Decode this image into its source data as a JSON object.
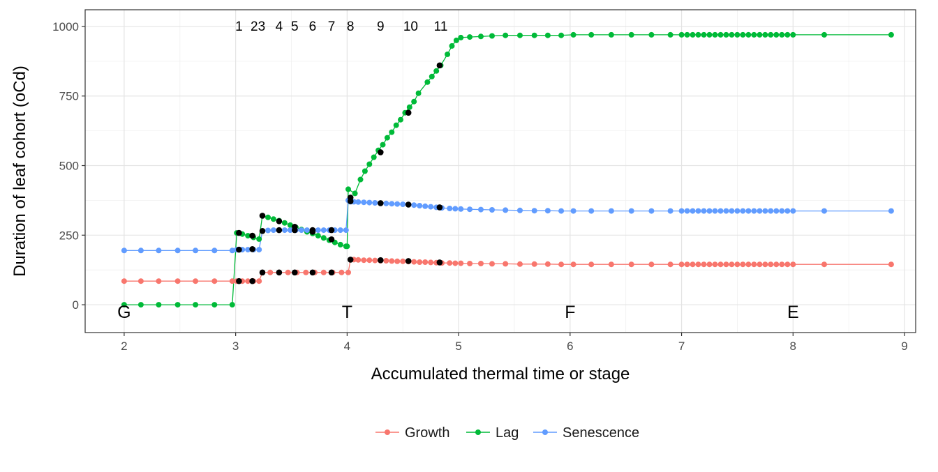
{
  "chart_data": {
    "type": "line",
    "title": "",
    "xlabel": "Accumulated thermal time or stage",
    "ylabel": "Duration of leaf cohort (oCd)",
    "xlim": [
      1.65,
      9.1
    ],
    "ylim": [
      -100,
      1060
    ],
    "x_ticks": [
      2,
      3,
      4,
      5,
      6,
      7,
      8,
      9
    ],
    "x_tick_labels": [
      "2",
      "3",
      "4",
      "5",
      "6",
      "7",
      "8",
      "9"
    ],
    "y_ticks": [
      0,
      250,
      500,
      750,
      1000
    ],
    "y_tick_labels": [
      "0",
      "250",
      "500",
      "750",
      "1000"
    ],
    "grid": true,
    "legend_position": "bottom",
    "series": [
      {
        "name": "Growth",
        "color": "#F8766D",
        "x": [
          2.0,
          2.15,
          2.31,
          2.48,
          2.64,
          2.81,
          2.97,
          3.01,
          3.06,
          3.11,
          3.16,
          3.21,
          3.24,
          3.31,
          3.39,
          3.47,
          3.55,
          3.63,
          3.71,
          3.79,
          3.87,
          3.95,
          4.01,
          4.03,
          4.06,
          4.1,
          4.15,
          4.2,
          4.25,
          4.3,
          4.35,
          4.4,
          4.45,
          4.5,
          4.55,
          4.6,
          4.65,
          4.7,
          4.75,
          4.8,
          4.85,
          4.92,
          4.97,
          5.02,
          5.1,
          5.2,
          5.3,
          5.42,
          5.55,
          5.68,
          5.8,
          5.92,
          6.03,
          6.19,
          6.37,
          6.55,
          6.73,
          6.9,
          7.0,
          7.05,
          7.1,
          7.15,
          7.2,
          7.25,
          7.3,
          7.35,
          7.4,
          7.45,
          7.5,
          7.55,
          7.6,
          7.65,
          7.7,
          7.75,
          7.8,
          7.85,
          7.9,
          7.95,
          8.0,
          8.28,
          8.88
        ],
        "values": [
          85,
          85,
          85,
          85,
          85,
          85,
          85,
          85,
          85,
          85,
          85,
          85,
          116,
          116,
          116,
          116,
          116,
          116,
          116,
          116,
          116,
          116,
          116,
          162,
          162,
          161,
          160,
          160,
          159,
          158,
          158,
          157,
          156,
          156,
          155,
          154,
          153,
          153,
          152,
          151,
          150,
          150,
          149,
          149,
          148,
          148,
          147,
          147,
          146,
          146,
          146,
          145,
          145,
          145,
          145,
          145,
          145,
          145,
          145,
          145,
          145,
          145,
          145,
          145,
          145,
          145,
          145,
          145,
          145,
          145,
          145,
          145,
          145,
          145,
          145,
          145,
          145,
          145,
          145,
          145,
          145
        ]
      },
      {
        "name": "Lag",
        "color": "#00BA38",
        "x": [
          2.0,
          2.15,
          2.31,
          2.48,
          2.64,
          2.81,
          2.97,
          3.01,
          3.06,
          3.11,
          3.16,
          3.21,
          3.24,
          3.29,
          3.34,
          3.39,
          3.44,
          3.49,
          3.54,
          3.59,
          3.64,
          3.69,
          3.74,
          3.79,
          3.84,
          3.89,
          3.94,
          3.99,
          4.0,
          4.01,
          4.07,
          4.12,
          4.16,
          4.2,
          4.24,
          4.28,
          4.32,
          4.36,
          4.4,
          4.44,
          4.48,
          4.52,
          4.56,
          4.6,
          4.64,
          4.72,
          4.76,
          4.8,
          4.84,
          4.9,
          4.94,
          4.98,
          5.02,
          5.1,
          5.2,
          5.3,
          5.42,
          5.55,
          5.68,
          5.8,
          5.92,
          6.03,
          6.19,
          6.37,
          6.55,
          6.73,
          6.9,
          7.0,
          7.05,
          7.1,
          7.15,
          7.2,
          7.25,
          7.3,
          7.35,
          7.4,
          7.45,
          7.5,
          7.55,
          7.6,
          7.65,
          7.7,
          7.75,
          7.8,
          7.85,
          7.9,
          7.95,
          8.0,
          8.28,
          8.88
        ],
        "values": [
          0,
          0,
          0,
          0,
          0,
          0,
          0,
          258,
          254,
          248,
          242,
          236,
          320,
          314,
          308,
          302,
          294,
          286,
          278,
          270,
          262,
          256,
          248,
          240,
          232,
          224,
          216,
          210,
          210,
          415,
          400,
          450,
          480,
          505,
          530,
          555,
          575,
          600,
          620,
          645,
          665,
          690,
          710,
          730,
          760,
          800,
          820,
          840,
          860,
          900,
          930,
          950,
          960,
          962,
          964,
          966,
          968,
          968,
          968,
          968,
          968,
          970,
          970,
          970,
          970,
          970,
          970,
          970,
          970,
          970,
          970,
          970,
          970,
          970,
          970,
          970,
          970,
          970,
          970,
          970,
          970,
          970,
          970,
          970,
          970,
          970,
          970,
          970,
          970,
          970
        ]
      },
      {
        "name": "Senescence",
        "color": "#619CFF",
        "x": [
          2.0,
          2.15,
          2.31,
          2.48,
          2.64,
          2.81,
          2.97,
          3.01,
          3.06,
          3.11,
          3.16,
          3.21,
          3.24,
          3.29,
          3.34,
          3.39,
          3.44,
          3.49,
          3.54,
          3.59,
          3.64,
          3.69,
          3.74,
          3.79,
          3.84,
          3.89,
          3.94,
          3.99,
          4.01,
          4.03,
          4.06,
          4.1,
          4.15,
          4.2,
          4.25,
          4.3,
          4.35,
          4.4,
          4.45,
          4.5,
          4.55,
          4.6,
          4.65,
          4.7,
          4.75,
          4.8,
          4.85,
          4.92,
          4.97,
          5.02,
          5.1,
          5.2,
          5.3,
          5.42,
          5.55,
          5.68,
          5.8,
          5.92,
          6.03,
          6.19,
          6.37,
          6.55,
          6.73,
          6.9,
          7.0,
          7.05,
          7.1,
          7.15,
          7.2,
          7.25,
          7.3,
          7.35,
          7.4,
          7.45,
          7.5,
          7.55,
          7.6,
          7.65,
          7.7,
          7.75,
          7.8,
          7.85,
          7.9,
          7.95,
          8.0,
          8.28,
          8.88
        ],
        "values": [
          195,
          195,
          195,
          195,
          195,
          195,
          195,
          198,
          198,
          198,
          198,
          198,
          265,
          267,
          268,
          268,
          268,
          268,
          268,
          268,
          268,
          268,
          268,
          268,
          268,
          268,
          268,
          268,
          375,
          370,
          370,
          369,
          368,
          367,
          366,
          365,
          364,
          363,
          362,
          361,
          360,
          358,
          356,
          354,
          352,
          350,
          348,
          346,
          345,
          344,
          343,
          342,
          341,
          340,
          339,
          338,
          338,
          337,
          337,
          337,
          337,
          337,
          337,
          337,
          337,
          337,
          337,
          337,
          337,
          337,
          337,
          337,
          337,
          337,
          337,
          337,
          337,
          337,
          337,
          337,
          337,
          337,
          337,
          337,
          337,
          337,
          337
        ]
      }
    ],
    "markers": {
      "color": "#000000",
      "points": [
        [
          3.03,
          85
        ],
        [
          3.03,
          198
        ],
        [
          3.03,
          258
        ],
        [
          3.15,
          85
        ],
        [
          3.15,
          200
        ],
        [
          3.15,
          248
        ],
        [
          3.24,
          116
        ],
        [
          3.24,
          265
        ],
        [
          3.24,
          320
        ],
        [
          3.39,
          116
        ],
        [
          3.39,
          268
        ],
        [
          3.39,
          300
        ],
        [
          3.53,
          116
        ],
        [
          3.53,
          268
        ],
        [
          3.53,
          280
        ],
        [
          3.69,
          116
        ],
        [
          3.69,
          262
        ],
        [
          3.69,
          268
        ],
        [
          3.86,
          116
        ],
        [
          3.86,
          235
        ],
        [
          3.86,
          268
        ],
        [
          4.03,
          162
        ],
        [
          4.03,
          372
        ],
        [
          4.03,
          385
        ],
        [
          4.3,
          160
        ],
        [
          4.3,
          365
        ],
        [
          4.3,
          548
        ],
        [
          4.55,
          157
        ],
        [
          4.55,
          360
        ],
        [
          4.55,
          690
        ],
        [
          4.83,
          152
        ],
        [
          4.83,
          350
        ],
        [
          4.83,
          860
        ]
      ]
    },
    "annotations_numbers": [
      {
        "label": "1",
        "x": 3.03
      },
      {
        "label": "23",
        "x": 3.2
      },
      {
        "label": "4",
        "x": 3.39
      },
      {
        "label": "5",
        "x": 3.53
      },
      {
        "label": "6",
        "x": 3.69
      },
      {
        "label": "7",
        "x": 3.86
      },
      {
        "label": "8",
        "x": 4.03
      },
      {
        "label": "9",
        "x": 4.3
      },
      {
        "label": "10",
        "x": 4.57
      },
      {
        "label": "11",
        "x": 4.84
      }
    ],
    "annotations_stages": [
      {
        "label": "G",
        "x": 2
      },
      {
        "label": "T",
        "x": 4
      },
      {
        "label": "F",
        "x": 6
      },
      {
        "label": "E",
        "x": 8
      }
    ]
  }
}
